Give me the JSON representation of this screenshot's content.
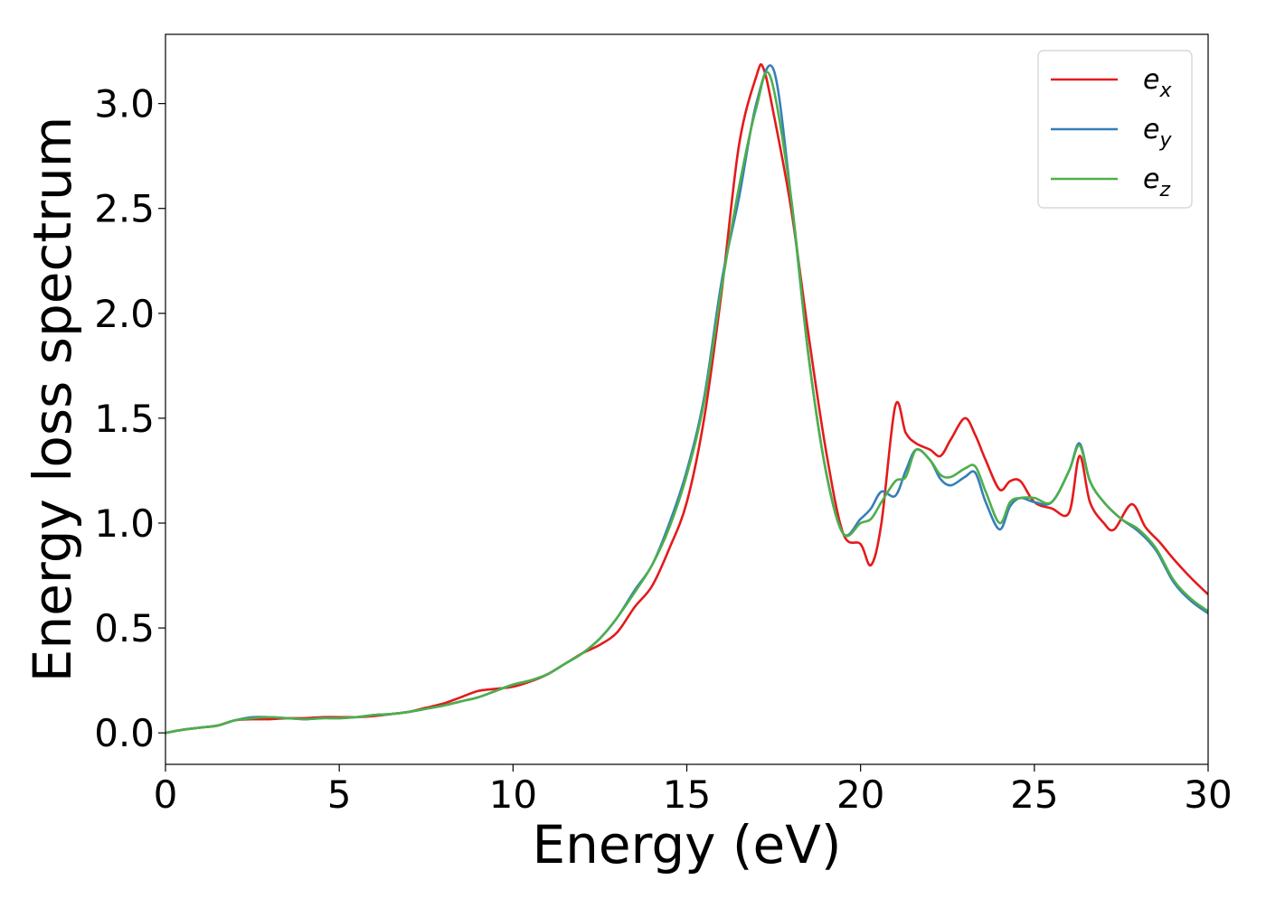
{
  "chart_data": {
    "type": "line",
    "title": "",
    "xlabel": "Energy (eV)",
    "ylabel": "Energy loss spectrum",
    "xlim": [
      0,
      30
    ],
    "ylim": [
      -0.15,
      3.33
    ],
    "xticks": [
      0,
      5,
      10,
      15,
      20,
      25,
      30
    ],
    "xtick_labels": [
      "0",
      "5",
      "10",
      "15",
      "20",
      "25",
      "30"
    ],
    "yticks": [
      0.0,
      0.5,
      1.0,
      1.5,
      2.0,
      2.5,
      3.0
    ],
    "ytick_labels": [
      "0.0",
      "0.5",
      "1.0",
      "1.5",
      "2.0",
      "2.5",
      "3.0"
    ],
    "grid": false,
    "legend": {
      "placement": "top-right",
      "entries": [
        {
          "base": "e",
          "sub": "x"
        },
        {
          "base": "e",
          "sub": "y"
        },
        {
          "base": "e",
          "sub": "z"
        }
      ]
    },
    "series": [
      {
        "name": "e_x",
        "color": "#e41a1c",
        "points": [
          [
            0,
            0
          ],
          [
            0.5,
            0.015
          ],
          [
            1,
            0.025
          ],
          [
            1.5,
            0.035
          ],
          [
            2,
            0.06
          ],
          [
            2.5,
            0.065
          ],
          [
            3,
            0.065
          ],
          [
            3.5,
            0.07
          ],
          [
            4,
            0.07
          ],
          [
            4.5,
            0.075
          ],
          [
            5,
            0.075
          ],
          [
            5.5,
            0.075
          ],
          [
            6,
            0.08
          ],
          [
            6.5,
            0.09
          ],
          [
            7,
            0.1
          ],
          [
            7.5,
            0.12
          ],
          [
            8,
            0.14
          ],
          [
            8.5,
            0.17
          ],
          [
            9,
            0.2
          ],
          [
            9.5,
            0.21
          ],
          [
            10,
            0.22
          ],
          [
            10.5,
            0.245
          ],
          [
            11,
            0.28
          ],
          [
            11.5,
            0.33
          ],
          [
            12,
            0.38
          ],
          [
            12.5,
            0.42
          ],
          [
            13,
            0.48
          ],
          [
            13.5,
            0.6
          ],
          [
            14,
            0.7
          ],
          [
            14.5,
            0.88
          ],
          [
            15,
            1.1
          ],
          [
            15.5,
            1.5
          ],
          [
            16,
            2.1
          ],
          [
            16.5,
            2.8
          ],
          [
            17,
            3.13
          ],
          [
            17.2,
            3.17
          ],
          [
            17.5,
            2.95
          ],
          [
            18,
            2.5
          ],
          [
            18.5,
            1.9
          ],
          [
            19,
            1.35
          ],
          [
            19.5,
            0.95
          ],
          [
            20,
            0.9
          ],
          [
            20.3,
            0.8
          ],
          [
            20.6,
            1.0
          ],
          [
            21,
            1.56
          ],
          [
            21.3,
            1.43
          ],
          [
            21.6,
            1.38
          ],
          [
            22,
            1.35
          ],
          [
            22.3,
            1.32
          ],
          [
            22.6,
            1.4
          ],
          [
            23,
            1.5
          ],
          [
            23.3,
            1.42
          ],
          [
            23.6,
            1.3
          ],
          [
            24,
            1.16
          ],
          [
            24.3,
            1.2
          ],
          [
            24.6,
            1.2
          ],
          [
            25,
            1.1
          ],
          [
            25.5,
            1.07
          ],
          [
            26,
            1.05
          ],
          [
            26.3,
            1.32
          ],
          [
            26.6,
            1.1
          ],
          [
            27,
            1.0
          ],
          [
            27.3,
            0.97
          ],
          [
            27.8,
            1.09
          ],
          [
            28.2,
            0.98
          ],
          [
            28.6,
            0.91
          ],
          [
            29,
            0.83
          ],
          [
            29.5,
            0.74
          ],
          [
            30,
            0.66
          ]
        ]
      },
      {
        "name": "e_y",
        "color": "#377eb8",
        "points": [
          [
            0,
            0
          ],
          [
            0.5,
            0.015
          ],
          [
            1,
            0.025
          ],
          [
            1.5,
            0.035
          ],
          [
            2,
            0.06
          ],
          [
            2.5,
            0.075
          ],
          [
            3,
            0.075
          ],
          [
            3.5,
            0.07
          ],
          [
            4,
            0.065
          ],
          [
            4.5,
            0.07
          ],
          [
            5,
            0.07
          ],
          [
            5.5,
            0.075
          ],
          [
            6,
            0.085
          ],
          [
            6.5,
            0.09
          ],
          [
            7,
            0.1
          ],
          [
            7.5,
            0.115
          ],
          [
            8,
            0.13
          ],
          [
            8.5,
            0.15
          ],
          [
            9,
            0.17
          ],
          [
            9.5,
            0.2
          ],
          [
            10,
            0.23
          ],
          [
            10.5,
            0.25
          ],
          [
            11,
            0.28
          ],
          [
            11.5,
            0.33
          ],
          [
            12,
            0.38
          ],
          [
            12.5,
            0.45
          ],
          [
            13,
            0.55
          ],
          [
            13.5,
            0.68
          ],
          [
            14,
            0.8
          ],
          [
            14.5,
            1.0
          ],
          [
            15,
            1.25
          ],
          [
            15.5,
            1.6
          ],
          [
            16,
            2.15
          ],
          [
            16.5,
            2.55
          ],
          [
            17,
            3.0
          ],
          [
            17.5,
            3.16
          ],
          [
            18,
            2.55
          ],
          [
            18.5,
            1.8
          ],
          [
            19,
            1.25
          ],
          [
            19.5,
            0.95
          ],
          [
            20,
            1.02
          ],
          [
            20.3,
            1.07
          ],
          [
            20.6,
            1.15
          ],
          [
            21,
            1.13
          ],
          [
            21.3,
            1.25
          ],
          [
            21.6,
            1.35
          ],
          [
            22,
            1.3
          ],
          [
            22.3,
            1.21
          ],
          [
            22.6,
            1.18
          ],
          [
            23,
            1.22
          ],
          [
            23.3,
            1.24
          ],
          [
            23.6,
            1.1
          ],
          [
            24,
            0.97
          ],
          [
            24.3,
            1.08
          ],
          [
            24.6,
            1.12
          ],
          [
            25,
            1.1
          ],
          [
            25.5,
            1.1
          ],
          [
            26,
            1.25
          ],
          [
            26.3,
            1.38
          ],
          [
            26.6,
            1.2
          ],
          [
            27,
            1.1
          ],
          [
            27.5,
            1.02
          ],
          [
            28,
            0.96
          ],
          [
            28.5,
            0.87
          ],
          [
            29,
            0.72
          ],
          [
            29.5,
            0.63
          ],
          [
            30,
            0.57
          ]
        ]
      },
      {
        "name": "e_z",
        "color": "#4daf4a",
        "points": [
          [
            0,
            0
          ],
          [
            0.5,
            0.015
          ],
          [
            1,
            0.025
          ],
          [
            1.5,
            0.035
          ],
          [
            2,
            0.06
          ],
          [
            2.5,
            0.07
          ],
          [
            3,
            0.075
          ],
          [
            3.5,
            0.07
          ],
          [
            4,
            0.065
          ],
          [
            4.5,
            0.07
          ],
          [
            5,
            0.07
          ],
          [
            5.5,
            0.075
          ],
          [
            6,
            0.085
          ],
          [
            6.5,
            0.09
          ],
          [
            7,
            0.1
          ],
          [
            7.5,
            0.115
          ],
          [
            8,
            0.13
          ],
          [
            8.5,
            0.15
          ],
          [
            9,
            0.17
          ],
          [
            9.5,
            0.2
          ],
          [
            10,
            0.23
          ],
          [
            10.5,
            0.25
          ],
          [
            11,
            0.28
          ],
          [
            11.5,
            0.33
          ],
          [
            12,
            0.38
          ],
          [
            12.5,
            0.45
          ],
          [
            13,
            0.55
          ],
          [
            13.5,
            0.67
          ],
          [
            14,
            0.8
          ],
          [
            14.5,
            0.98
          ],
          [
            15,
            1.23
          ],
          [
            15.5,
            1.58
          ],
          [
            16,
            2.12
          ],
          [
            16.5,
            2.6
          ],
          [
            17,
            2.98
          ],
          [
            17.4,
            3.13
          ],
          [
            18,
            2.55
          ],
          [
            18.5,
            1.8
          ],
          [
            19,
            1.25
          ],
          [
            19.5,
            0.95
          ],
          [
            20,
            1.0
          ],
          [
            20.3,
            1.02
          ],
          [
            20.6,
            1.1
          ],
          [
            21,
            1.2
          ],
          [
            21.3,
            1.22
          ],
          [
            21.6,
            1.35
          ],
          [
            22,
            1.3
          ],
          [
            22.3,
            1.23
          ],
          [
            22.6,
            1.22
          ],
          [
            23,
            1.26
          ],
          [
            23.3,
            1.27
          ],
          [
            23.6,
            1.15
          ],
          [
            24,
            1.0
          ],
          [
            24.3,
            1.1
          ],
          [
            24.6,
            1.12
          ],
          [
            25,
            1.12
          ],
          [
            25.5,
            1.1
          ],
          [
            26,
            1.25
          ],
          [
            26.3,
            1.37
          ],
          [
            26.6,
            1.2
          ],
          [
            27,
            1.1
          ],
          [
            27.5,
            1.02
          ],
          [
            28,
            0.97
          ],
          [
            28.5,
            0.88
          ],
          [
            29,
            0.73
          ],
          [
            29.5,
            0.64
          ],
          [
            30,
            0.58
          ]
        ]
      }
    ]
  }
}
